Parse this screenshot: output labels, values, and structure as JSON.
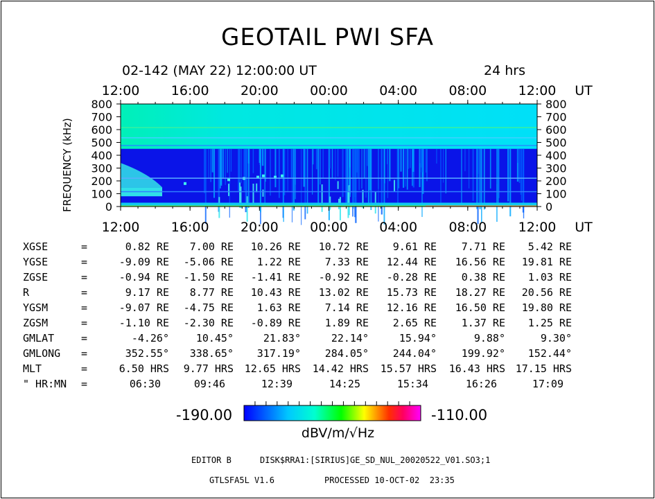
{
  "title": "GEOTAIL PWI SFA",
  "date_line": "02-142 (MAY 22) 12:00:00 UT",
  "duration": "24 hrs",
  "chart_data": {
    "type": "heatmap",
    "title": "GEOTAIL PWI SFA",
    "ylabel": "FREQUENCY (kHz)",
    "xlabel": "UT",
    "x_ticks": [
      "12:00",
      "16:00",
      "20:00",
      "00:00",
      "04:00",
      "08:00",
      "12:00"
    ],
    "x_unit": "UT",
    "y_ticks": [
      0,
      100,
      200,
      300,
      400,
      500,
      600,
      700,
      800
    ],
    "ylim": [
      0,
      800
    ],
    "colorbar": {
      "min": "-190.00",
      "max": "-110.00",
      "label": "dBV/m/√Hz"
    }
  },
  "orbit": {
    "rows": [
      {
        "label": "XGSE",
        "values": [
          "0.82 RE",
          "7.00 RE",
          "10.26 RE",
          "10.72 RE",
          "9.61 RE",
          "7.71 RE",
          "5.42 RE"
        ]
      },
      {
        "label": "YGSE",
        "values": [
          "-9.09 RE",
          "-5.06 RE",
          "1.22 RE",
          "7.33 RE",
          "12.44 RE",
          "16.56 RE",
          "19.81 RE"
        ]
      },
      {
        "label": "ZGSE",
        "values": [
          "-0.94 RE",
          "-1.50 RE",
          "-1.41 RE",
          "-0.92 RE",
          "-0.28 RE",
          "0.38 RE",
          "1.03 RE"
        ]
      },
      {
        "label": "R",
        "values": [
          "9.17 RE",
          "8.77 RE",
          "10.43 RE",
          "13.02 RE",
          "15.73 RE",
          "18.27 RE",
          "20.56 RE"
        ]
      },
      {
        "label": "YGSM",
        "values": [
          "-9.07 RE",
          "-4.75 RE",
          "1.63 RE",
          "7.14 RE",
          "12.16 RE",
          "16.50 RE",
          "19.80 RE"
        ]
      },
      {
        "label": "ZGSM",
        "values": [
          "-1.10 RE",
          "-2.30 RE",
          "-0.89 RE",
          "1.89 RE",
          "2.65 RE",
          "1.37 RE",
          "1.25 RE"
        ]
      },
      {
        "label": "GMLAT",
        "values": [
          "-4.26°",
          "10.45°",
          "21.83°",
          "22.14°",
          "15.94°",
          "9.88°",
          "9.30°"
        ]
      },
      {
        "label": "GMLONG",
        "values": [
          "352.55°",
          "338.65°",
          "317.19°",
          "284.05°",
          "244.04°",
          "199.92°",
          "152.44°"
        ]
      },
      {
        "label": "MLT",
        "values": [
          "6.50 HRS",
          "9.77 HRS",
          "12.65 HRS",
          "14.42 HRS",
          "15.57 HRS",
          "16.43 HRS",
          "17.15 HRS"
        ]
      },
      {
        "label": "\" HR:MN",
        "values": [
          "06:30",
          "09:46",
          "12:39",
          "14:25",
          "15:34",
          "16:26",
          "17:09"
        ]
      }
    ]
  },
  "footer": {
    "editor": "EDITOR B",
    "file": "DISK$RRA1:[SIRIUS]GE_SD_NUL_20020522_V01.SO3;1",
    "version": "GTLSFA5L V1.6",
    "processed": "PROCESSED 10-OCT-02  23:35"
  }
}
